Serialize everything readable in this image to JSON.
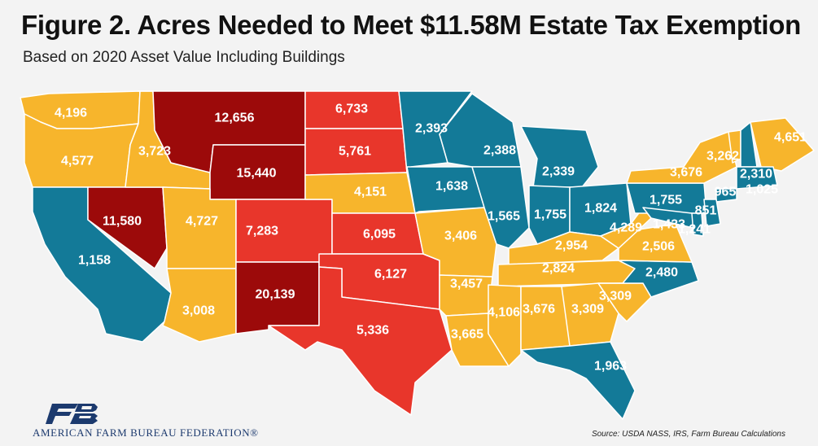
{
  "title": "Figure 2. Acres Needed to Meet $11.58M Estate Tax Exemption",
  "subtitle": "Based on 2020 Asset Value Including Buildings",
  "source": "Source: USDA NASS, IRS, Farm Bureau Calculations",
  "logo": {
    "text": "AMERICAN FARM BUREAU FEDERATION®",
    "mark": "FB"
  },
  "colors": {
    "low": "#137a98",
    "mid": "#f7b52c",
    "high": "#e8362b",
    "highest": "#9c0a0a",
    "border": "#ffffff",
    "background": "#f3f3f3"
  },
  "states": [
    {
      "id": "WA",
      "value": "4,196",
      "tier": "mid"
    },
    {
      "id": "OR",
      "value": "4,577",
      "tier": "mid"
    },
    {
      "id": "CA",
      "value": "1,158",
      "tier": "low"
    },
    {
      "id": "NV",
      "value": "11,580",
      "tier": "highest"
    },
    {
      "id": "ID",
      "value": "3,723",
      "tier": "mid"
    },
    {
      "id": "MT",
      "value": "12,656",
      "tier": "highest"
    },
    {
      "id": "WY",
      "value": "15,440",
      "tier": "highest"
    },
    {
      "id": "UT",
      "value": "4,727",
      "tier": "mid"
    },
    {
      "id": "AZ",
      "value": "3,008",
      "tier": "mid"
    },
    {
      "id": "CO",
      "value": "7,283",
      "tier": "high"
    },
    {
      "id": "NM",
      "value": "20,139",
      "tier": "highest"
    },
    {
      "id": "ND",
      "value": "6,733",
      "tier": "high"
    },
    {
      "id": "SD",
      "value": "5,761",
      "tier": "high"
    },
    {
      "id": "NE",
      "value": "4,151",
      "tier": "mid"
    },
    {
      "id": "KS",
      "value": "6,095",
      "tier": "high"
    },
    {
      "id": "OK",
      "value": "6,127",
      "tier": "high"
    },
    {
      "id": "TX",
      "value": "5,336",
      "tier": "high"
    },
    {
      "id": "MN",
      "value": "2,393",
      "tier": "low"
    },
    {
      "id": "IA",
      "value": "1,638",
      "tier": "low"
    },
    {
      "id": "MO",
      "value": "3,406",
      "tier": "mid"
    },
    {
      "id": "AR",
      "value": "3,457",
      "tier": "mid"
    },
    {
      "id": "LA",
      "value": "3,665",
      "tier": "mid"
    },
    {
      "id": "WI",
      "value": "2,388",
      "tier": "low"
    },
    {
      "id": "IL",
      "value": "1,565",
      "tier": "low"
    },
    {
      "id": "MI",
      "value": "2,339",
      "tier": "low"
    },
    {
      "id": "IN",
      "value": "1,755",
      "tier": "low"
    },
    {
      "id": "OH",
      "value": "1,824",
      "tier": "low"
    },
    {
      "id": "KY",
      "value": "2,954",
      "tier": "mid"
    },
    {
      "id": "TN",
      "value": "2,824",
      "tier": "mid"
    },
    {
      "id": "MS",
      "value": "4,106",
      "tier": "mid"
    },
    {
      "id": "AL",
      "value": "3,676",
      "tier": "mid"
    },
    {
      "id": "GA",
      "value": "3,309",
      "tier": "mid"
    },
    {
      "id": "FL",
      "value": "1,963",
      "tier": "low"
    },
    {
      "id": "SC",
      "value": "3,309",
      "tier": "mid"
    },
    {
      "id": "NC",
      "value": "2,480",
      "tier": "low"
    },
    {
      "id": "VA",
      "value": "2,506",
      "tier": "mid"
    },
    {
      "id": "WV",
      "value": "4,289",
      "tier": "mid"
    },
    {
      "id": "PA",
      "value": "1,755",
      "tier": "low"
    },
    {
      "id": "NY",
      "value": "3,676",
      "tier": "mid"
    },
    {
      "id": "VT",
      "value": "3,262",
      "tier": "mid"
    },
    {
      "id": "NH",
      "value": "2,310",
      "tier": "low"
    },
    {
      "id": "ME",
      "value": "4,651",
      "tier": "mid"
    },
    {
      "id": "MA",
      "value": "1,025",
      "tier": "low"
    },
    {
      "id": "CT",
      "value": "965",
      "tier": "low"
    },
    {
      "id": "NJ",
      "value": "851",
      "tier": "low"
    },
    {
      "id": "MD",
      "value": "1,433",
      "tier": "low"
    },
    {
      "id": "DE",
      "value": "1,241",
      "tier": "low"
    }
  ]
}
